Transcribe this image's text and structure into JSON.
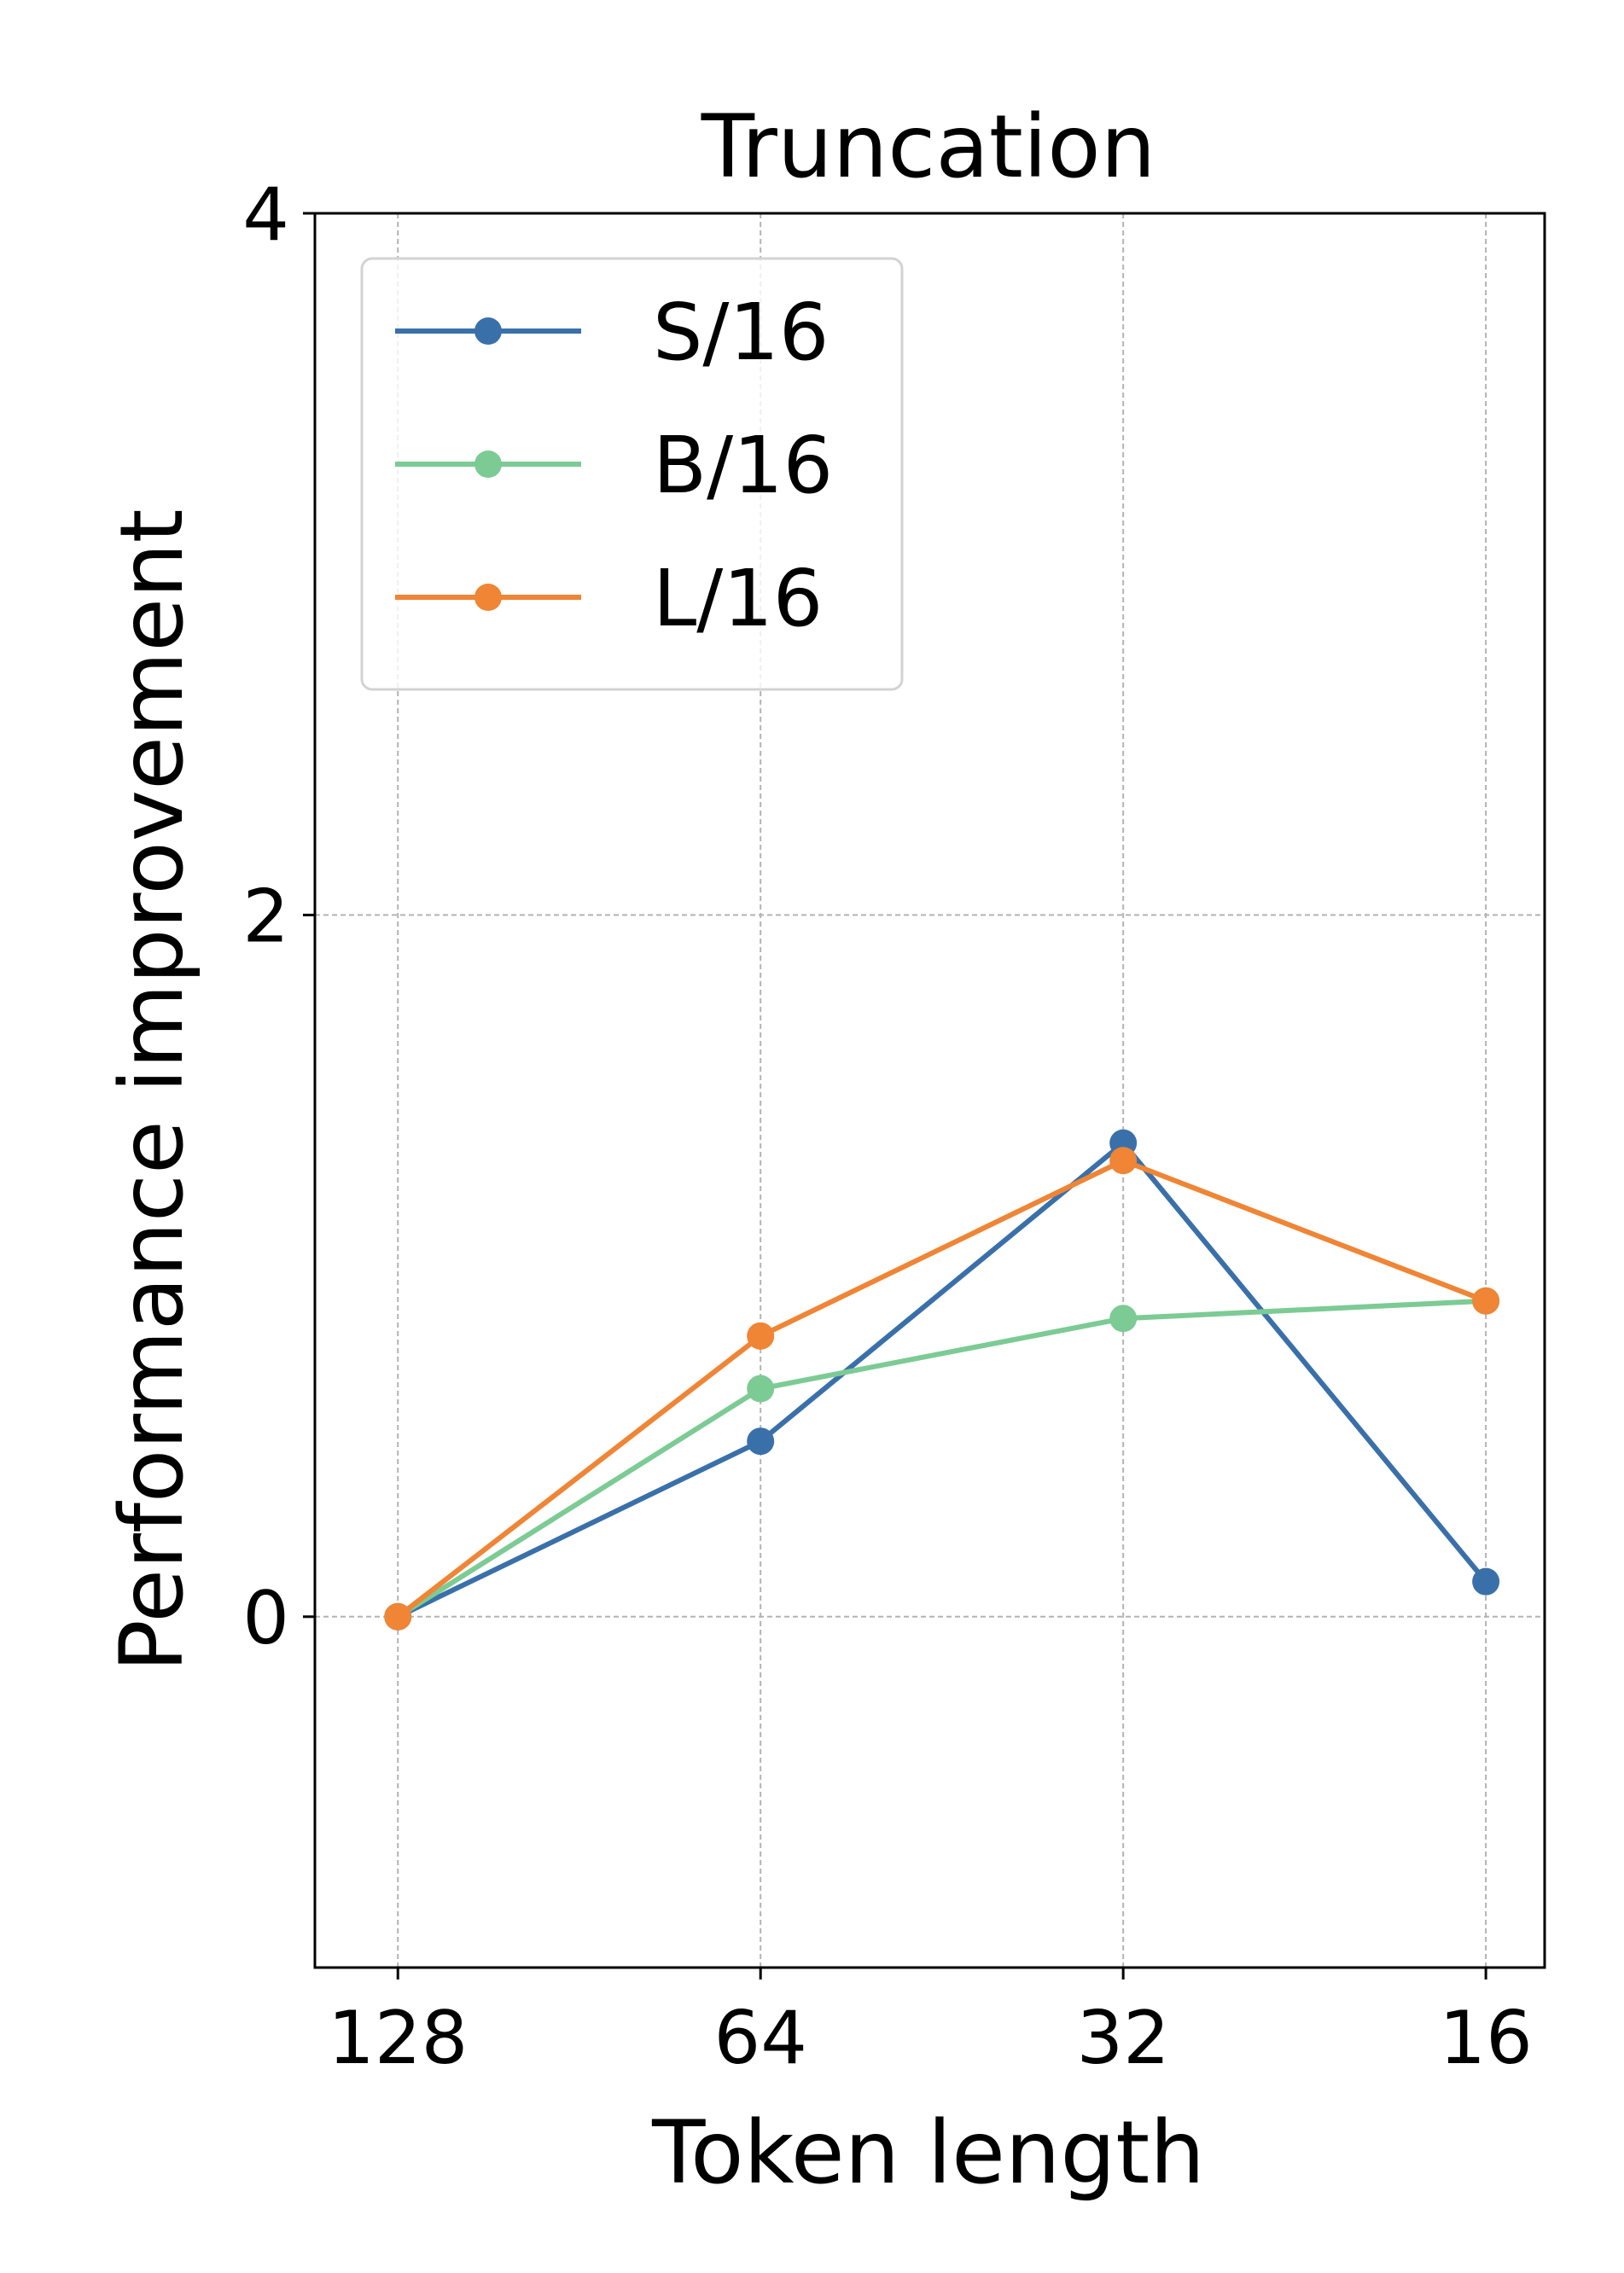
{
  "chart_data": {
    "type": "line",
    "title": "Truncation",
    "xlabel": "Token length",
    "ylabel": "Performance improvement",
    "x": [
      128,
      64,
      32,
      16
    ],
    "x_tick_labels": [
      "128",
      "64",
      "32",
      "16"
    ],
    "x_scale": "log2",
    "x_reversed": true,
    "xlim": [
      150,
      14.3
    ],
    "ylim": [
      -1,
      4
    ],
    "y_ticks": [
      0,
      2,
      4
    ],
    "y_tick_labels": [
      "0",
      "2",
      "4"
    ],
    "grid": true,
    "legend_position": "upper-left",
    "series": [
      {
        "name": "S/16",
        "color": "#3a70aa",
        "values": [
          0.0,
          0.5,
          1.35,
          0.1
        ]
      },
      {
        "name": "B/16",
        "color": "#7ccb94",
        "values": [
          0.0,
          0.65,
          0.85,
          0.9
        ]
      },
      {
        "name": "L/16",
        "color": "#ef8535",
        "values": [
          0.0,
          0.8,
          1.3,
          0.9
        ]
      }
    ]
  }
}
